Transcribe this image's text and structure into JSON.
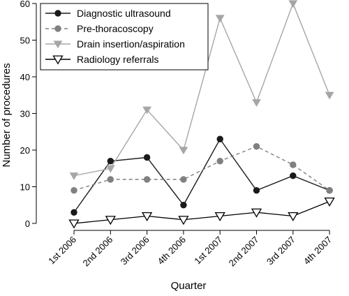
{
  "chart_data": {
    "type": "line",
    "title": "",
    "xlabel": "Quarter",
    "ylabel": "Number of procedures",
    "categories": [
      "1st 2006",
      "2nd 2006",
      "3rd 2006",
      "4th 2006",
      "1st 2007",
      "2nd 2007",
      "3rd 2007",
      "4th 2007"
    ],
    "ylim": [
      0,
      60
    ],
    "yticks": [
      0,
      10,
      20,
      30,
      40,
      50,
      60
    ],
    "grid": false,
    "legend_position": "top-left",
    "series": [
      {
        "name": "Diagnostic ultrasound",
        "values": [
          3,
          17,
          18,
          5,
          23,
          9,
          13,
          9
        ],
        "color": "#1a1a1a",
        "line_style": "solid",
        "marker": "filled-circle"
      },
      {
        "name": "Pre-thoracoscopy",
        "values": [
          9,
          12,
          12,
          12,
          17,
          21,
          16,
          9
        ],
        "color": "#808080",
        "line_style": "dashed",
        "marker": "filled-circle"
      },
      {
        "name": "Drain insertion/aspiration",
        "values": [
          13,
          15,
          31,
          20,
          56,
          33,
          60,
          35
        ],
        "color": "#a6a6a6",
        "line_style": "solid",
        "marker": "filled-down-triangle"
      },
      {
        "name": "Radiology referrals",
        "values": [
          0,
          1,
          2,
          1,
          2,
          3,
          2,
          6
        ],
        "color": "#000000",
        "line_style": "solid",
        "marker": "open-down-triangle"
      }
    ]
  }
}
